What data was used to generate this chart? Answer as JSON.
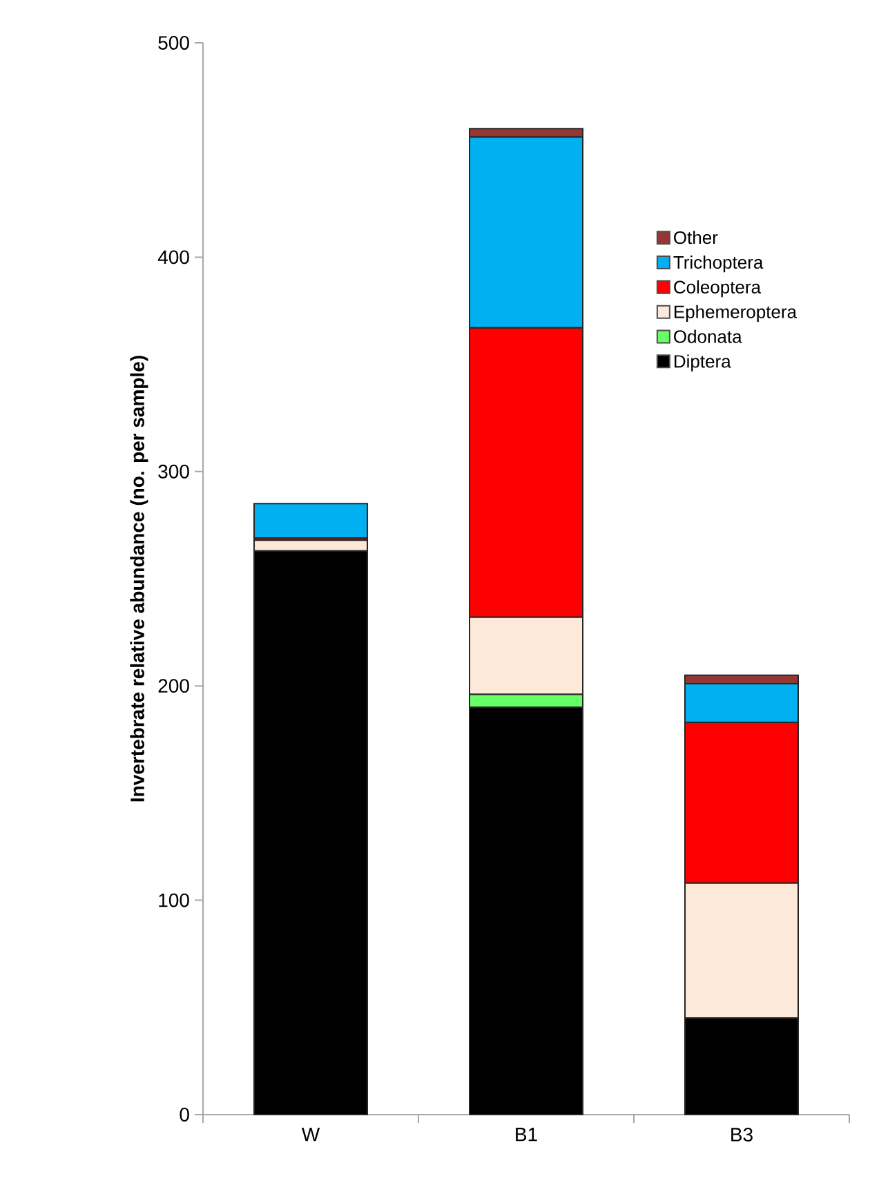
{
  "chart_data": {
    "type": "bar",
    "stacked": true,
    "ylabel": "Invertebrate relative abundance  (no. per sample)",
    "categories": [
      "W",
      "B1",
      "B3"
    ],
    "series": [
      {
        "name": "Diptera",
        "color": "#000000",
        "values": [
          263,
          190,
          45
        ]
      },
      {
        "name": "Odonata",
        "color": "#66ff66",
        "values": [
          0,
          6,
          0
        ]
      },
      {
        "name": "Ephemeroptera",
        "color": "#fde9d9",
        "values": [
          5,
          36,
          63
        ]
      },
      {
        "name": "Coleoptera",
        "color": "#ff0000",
        "values": [
          1,
          135,
          75
        ]
      },
      {
        "name": "Trichoptera",
        "color": "#00b0f0",
        "values": [
          16,
          89,
          18
        ]
      },
      {
        "name": "Other",
        "color": "#953735",
        "values": [
          0,
          4,
          4
        ]
      }
    ],
    "ylim": [
      0,
      500
    ],
    "yticks": [
      0,
      100,
      200,
      300,
      400,
      500
    ],
    "grid": false,
    "legend": "top right"
  }
}
